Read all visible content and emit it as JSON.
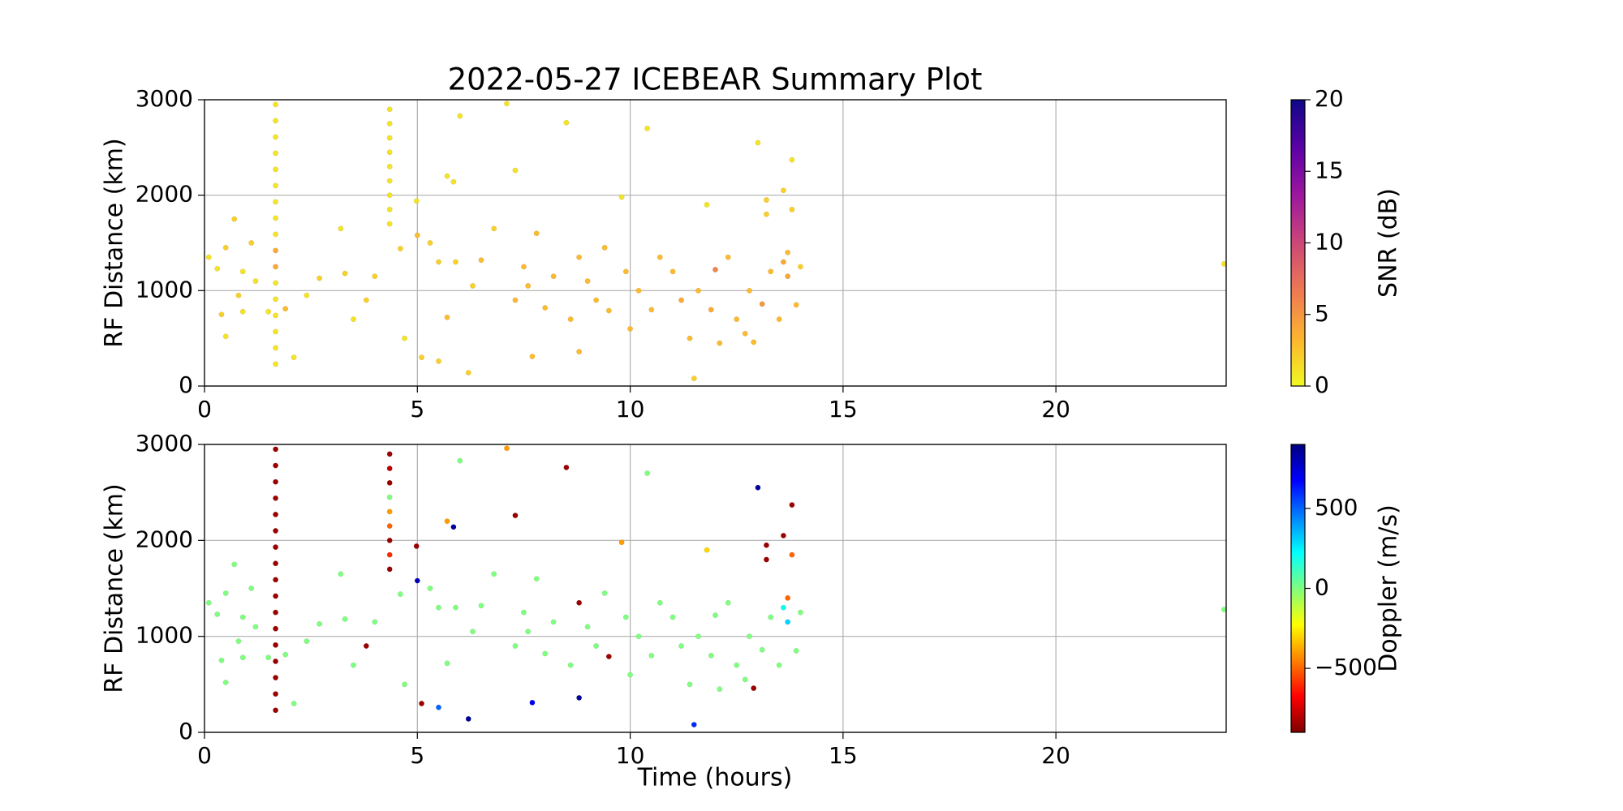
{
  "chart_data": [
    {
      "type": "scatter",
      "title": "2022-05-27 ICEBEAR Summary Plot",
      "ylabel": "RF Distance (km)",
      "xlim": [
        0,
        24
      ],
      "xticks": [
        0,
        5,
        10,
        15,
        20
      ],
      "ylim": [
        0,
        3000
      ],
      "yticks": [
        0,
        1000,
        2000,
        3000
      ],
      "grid": true,
      "colorbar": {
        "label": "SNR (dB)",
        "lim": [
          0,
          20
        ],
        "ticks": [
          0,
          5,
          10,
          15,
          20
        ],
        "colormap": [
          "#f0f921",
          "#fdb42f",
          "#ed7953",
          "#cc4778",
          "#9c179e",
          "#5c01a6",
          "#0d0887"
        ]
      },
      "x": [
        1.67,
        1.67,
        1.67,
        1.67,
        1.67,
        1.67,
        1.67,
        1.67,
        1.67,
        1.67,
        1.67,
        1.67,
        1.67,
        1.67,
        1.67,
        1.67,
        1.67,
        4.35,
        4.35,
        4.35,
        4.35,
        4.35,
        4.35,
        4.35,
        4.35,
        4.35,
        0.1,
        0.3,
        0.4,
        0.5,
        0.5,
        0.7,
        0.8,
        0.9,
        0.9,
        1.1,
        1.2,
        1.5,
        1.9,
        2.1,
        2.4,
        2.7,
        3.2,
        3.3,
        3.5,
        3.8,
        4.0,
        4.6,
        4.7,
        4.98,
        5.0,
        5.1,
        5.3,
        5.5,
        5.5,
        5.7,
        5.7,
        5.85,
        5.9,
        6.2,
        6.0,
        6.3,
        6.5,
        6.8,
        7.1,
        7.3,
        7.3,
        7.5,
        7.6,
        7.7,
        7.8,
        8.0,
        8.2,
        8.5,
        8.6,
        8.8,
        8.8,
        9.0,
        9.2,
        9.4,
        9.5,
        9.8,
        9.9,
        10.0,
        10.2,
        10.4,
        10.5,
        10.7,
        11.0,
        11.2,
        11.4,
        11.5,
        11.6,
        11.8,
        11.9,
        12.0,
        12.1,
        12.3,
        12.5,
        12.7,
        12.8,
        12.9,
        13.0,
        13.1,
        13.2,
        13.2,
        13.3,
        13.5,
        13.6,
        13.6,
        13.7,
        13.7,
        13.8,
        13.8,
        13.9,
        14.0,
        23.95
      ],
      "y": [
        230,
        400,
        570,
        740,
        910,
        1080,
        1250,
        1420,
        1590,
        1760,
        1930,
        2100,
        2270,
        2440,
        2610,
        2780,
        2950,
        1700,
        1850,
        2000,
        2150,
        2300,
        2450,
        2600,
        2750,
        2900,
        1350,
        1230,
        750,
        1450,
        520,
        1750,
        950,
        780,
        1200,
        1500,
        1100,
        780,
        810,
        300,
        950,
        1130,
        1650,
        1180,
        700,
        900,
        1150,
        1440,
        500,
        1940,
        1580,
        300,
        1500,
        1300,
        260,
        720,
        2200,
        2140,
        1300,
        140,
        2830,
        1050,
        1320,
        1650,
        2960,
        2260,
        900,
        1250,
        1050,
        310,
        1600,
        820,
        1150,
        2760,
        700,
        1350,
        360,
        1100,
        900,
        1450,
        790,
        1980,
        1200,
        600,
        1000,
        2700,
        800,
        1350,
        1200,
        900,
        500,
        80,
        1000,
        1900,
        800,
        1220,
        450,
        1350,
        700,
        550,
        1000,
        460,
        2550,
        860,
        1950,
        1800,
        1200,
        700,
        1300,
        2050,
        1150,
        1400,
        2370,
        1850,
        850,
        1250,
        1280
      ],
      "c": [
        1,
        1,
        1,
        1,
        1,
        1,
        4,
        4,
        1,
        1,
        1,
        1,
        1,
        1,
        1,
        1,
        1,
        1,
        1,
        1,
        1,
        1,
        1,
        1,
        1,
        1,
        1,
        1,
        2,
        2,
        1,
        2,
        2,
        1,
        1,
        2,
        1,
        1,
        3,
        1,
        1,
        2,
        1,
        2,
        1,
        2,
        2,
        2,
        1,
        1,
        3,
        2,
        2,
        2,
        2,
        3,
        1,
        1,
        2,
        2,
        1,
        2,
        3,
        2,
        1,
        1,
        3,
        3,
        3,
        3,
        3,
        3,
        3,
        1,
        3,
        3,
        3,
        3,
        3,
        3,
        3,
        1,
        3,
        3,
        3,
        1,
        3,
        3,
        3,
        4,
        3,
        2,
        3,
        1,
        4,
        6,
        3,
        3,
        3,
        3,
        3,
        3,
        1,
        5,
        2,
        2,
        3,
        3,
        4,
        2,
        4,
        3,
        1,
        2,
        3,
        2,
        1
      ]
    },
    {
      "type": "scatter",
      "ylabel": "RF Distance (km)",
      "xlabel": "Time (hours)",
      "xlim": [
        0,
        24
      ],
      "xticks": [
        0,
        5,
        10,
        15,
        20
      ],
      "ylim": [
        0,
        3000
      ],
      "yticks": [
        0,
        1000,
        2000,
        3000
      ],
      "grid": true,
      "colorbar": {
        "label": "Doppler (m/s)",
        "lim": [
          -900,
          900
        ],
        "ticks": [
          {
            "value": -500,
            "label": "−500"
          },
          0,
          500
        ],
        "colormap": [
          "#7f0000",
          "#ff0000",
          "#ff8000",
          "#ffff00",
          "#7fff7f",
          "#00ffff",
          "#0080ff",
          "#0000ff",
          "#00007f"
        ]
      },
      "x": [
        1.67,
        1.67,
        1.67,
        1.67,
        1.67,
        1.67,
        1.67,
        1.67,
        1.67,
        1.67,
        1.67,
        1.67,
        1.67,
        1.67,
        1.67,
        1.67,
        1.67,
        4.35,
        4.35,
        4.35,
        4.35,
        4.35,
        4.35,
        4.35,
        4.35,
        4.35,
        0.1,
        0.3,
        0.4,
        0.5,
        0.5,
        0.7,
        0.8,
        0.9,
        0.9,
        1.1,
        1.2,
        1.5,
        1.9,
        2.1,
        2.4,
        2.7,
        3.2,
        3.3,
        3.5,
        3.8,
        4.0,
        4.6,
        4.7,
        4.98,
        5.0,
        5.1,
        5.3,
        5.5,
        5.5,
        5.7,
        5.7,
        5.85,
        5.9,
        6.2,
        6.0,
        6.3,
        6.5,
        6.8,
        7.1,
        7.3,
        7.3,
        7.5,
        7.6,
        7.7,
        7.8,
        8.0,
        8.2,
        8.5,
        8.6,
        8.8,
        8.8,
        9.0,
        9.2,
        9.4,
        9.5,
        9.8,
        9.9,
        10.0,
        10.2,
        10.4,
        10.5,
        10.7,
        11.0,
        11.2,
        11.4,
        11.5,
        11.6,
        11.8,
        11.9,
        12.0,
        12.1,
        12.3,
        12.5,
        12.7,
        12.8,
        12.9,
        13.0,
        13.1,
        13.2,
        13.2,
        13.3,
        13.5,
        13.6,
        13.6,
        13.7,
        13.7,
        13.8,
        13.8,
        13.9,
        14.0,
        23.95
      ],
      "y": [
        230,
        400,
        570,
        740,
        910,
        1080,
        1250,
        1420,
        1590,
        1760,
        1930,
        2100,
        2270,
        2440,
        2610,
        2780,
        2950,
        1700,
        1850,
        2000,
        2150,
        2300,
        2450,
        2600,
        2750,
        2900,
        1350,
        1230,
        750,
        1450,
        520,
        1750,
        950,
        780,
        1200,
        1500,
        1100,
        780,
        810,
        300,
        950,
        1130,
        1650,
        1180,
        700,
        900,
        1150,
        1440,
        500,
        1940,
        1580,
        300,
        1500,
        1300,
        260,
        720,
        2200,
        2140,
        1300,
        140,
        2830,
        1050,
        1320,
        1650,
        2960,
        2260,
        900,
        1250,
        1050,
        310,
        1600,
        820,
        1150,
        2760,
        700,
        1350,
        360,
        1100,
        900,
        1450,
        790,
        1980,
        1200,
        600,
        1000,
        2700,
        800,
        1350,
        1200,
        900,
        500,
        80,
        1000,
        1900,
        800,
        1220,
        450,
        1350,
        700,
        550,
        1000,
        460,
        2550,
        860,
        1950,
        1800,
        1200,
        700,
        1300,
        2050,
        1150,
        1400,
        2370,
        1850,
        850,
        1250,
        1280
      ],
      "c": [
        -850,
        -850,
        -850,
        -850,
        -850,
        -850,
        -850,
        -850,
        -850,
        -850,
        -850,
        -850,
        -850,
        -850,
        -850,
        -850,
        -850,
        -850,
        -600,
        -850,
        -500,
        -400,
        0,
        -850,
        -800,
        -850,
        0,
        0,
        0,
        0,
        0,
        0,
        0,
        0,
        0,
        0,
        0,
        0,
        0,
        0,
        0,
        0,
        0,
        0,
        0,
        -850,
        0,
        0,
        0,
        -850,
        800,
        -850,
        0,
        0,
        500,
        0,
        -400,
        850,
        0,
        850,
        0,
        0,
        0,
        0,
        -400,
        -850,
        0,
        0,
        0,
        700,
        0,
        0,
        0,
        -850,
        0,
        -850,
        850,
        0,
        0,
        0,
        -850,
        -400,
        0,
        0,
        0,
        0,
        0,
        0,
        0,
        0,
        0,
        600,
        0,
        -300,
        0,
        0,
        0,
        0,
        0,
        0,
        0,
        -850,
        850,
        0,
        -850,
        -850,
        0,
        0,
        200,
        -850,
        300,
        -500,
        -850,
        -500,
        0,
        0,
        0
      ]
    }
  ]
}
